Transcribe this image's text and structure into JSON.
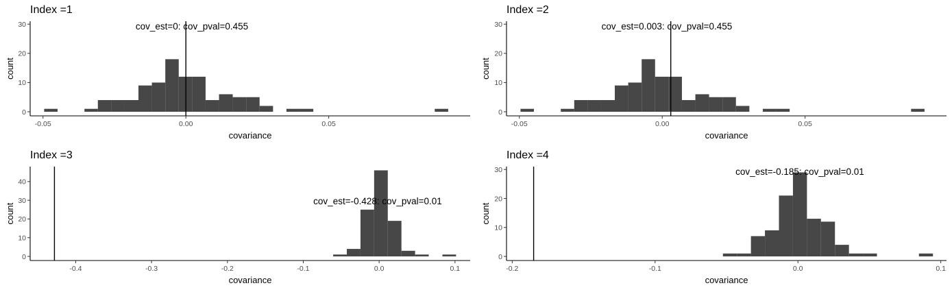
{
  "chart_data": [
    {
      "type": "histogram",
      "title": "Index =1",
      "xlabel": "covariance",
      "ylabel": "count",
      "annotation": "cov_est=0: cov_pval=0.455",
      "vline": 0,
      "xlim": [
        -0.0545,
        0.0995
      ],
      "ylim": [
        0,
        31
      ],
      "xticks": [
        -0.05,
        0.0,
        0.05
      ],
      "xtick_labels": [
        "-0.05",
        "0.00",
        "0.05"
      ],
      "yticks": [
        0,
        10,
        20,
        30
      ],
      "bins": [
        {
          "x0": -0.0496,
          "x1": -0.0449,
          "count": 1
        },
        {
          "x0": -0.0355,
          "x1": -0.0308,
          "count": 1
        },
        {
          "x0": -0.0308,
          "x1": -0.0261,
          "count": 4
        },
        {
          "x0": -0.0261,
          "x1": -0.0214,
          "count": 4
        },
        {
          "x0": -0.0214,
          "x1": -0.0166,
          "count": 4
        },
        {
          "x0": -0.0166,
          "x1": -0.0119,
          "count": 9
        },
        {
          "x0": -0.0119,
          "x1": -0.0072,
          "count": 10
        },
        {
          "x0": -0.0072,
          "x1": -0.0025,
          "count": 18
        },
        {
          "x0": -0.0025,
          "x1": 0.0022,
          "count": 12
        },
        {
          "x0": 0.0022,
          "x1": 0.0069,
          "count": 12
        },
        {
          "x0": 0.0069,
          "x1": 0.0116,
          "count": 4
        },
        {
          "x0": 0.0116,
          "x1": 0.0164,
          "count": 6
        },
        {
          "x0": 0.0164,
          "x1": 0.0211,
          "count": 5
        },
        {
          "x0": 0.0211,
          "x1": 0.0258,
          "count": 5
        },
        {
          "x0": 0.0258,
          "x1": 0.0305,
          "count": 2
        },
        {
          "x0": 0.0352,
          "x1": 0.0399,
          "count": 1
        },
        {
          "x0": 0.0399,
          "x1": 0.0446,
          "count": 1
        },
        {
          "x0": 0.0871,
          "x1": 0.0918,
          "count": 1
        }
      ]
    },
    {
      "type": "histogram",
      "title": "Index =2",
      "xlabel": "covariance",
      "ylabel": "count",
      "annotation": "cov_est=0.003: cov_pval=0.455",
      "vline": 0.003,
      "xlim": [
        -0.0545,
        0.0995
      ],
      "ylim": [
        0,
        31
      ],
      "xticks": [
        -0.05,
        0.0,
        0.05
      ],
      "xtick_labels": [
        "-0.05",
        "0.00",
        "0.05"
      ],
      "yticks": [
        0,
        10,
        20,
        30
      ],
      "bins": [
        {
          "x0": -0.0496,
          "x1": -0.0449,
          "count": 1
        },
        {
          "x0": -0.0355,
          "x1": -0.0308,
          "count": 1
        },
        {
          "x0": -0.0308,
          "x1": -0.0261,
          "count": 4
        },
        {
          "x0": -0.0261,
          "x1": -0.0214,
          "count": 4
        },
        {
          "x0": -0.0214,
          "x1": -0.0166,
          "count": 4
        },
        {
          "x0": -0.0166,
          "x1": -0.0119,
          "count": 9
        },
        {
          "x0": -0.0119,
          "x1": -0.0072,
          "count": 10
        },
        {
          "x0": -0.0072,
          "x1": -0.0025,
          "count": 18
        },
        {
          "x0": -0.0025,
          "x1": 0.0022,
          "count": 12
        },
        {
          "x0": 0.0022,
          "x1": 0.0069,
          "count": 12
        },
        {
          "x0": 0.0069,
          "x1": 0.0116,
          "count": 4
        },
        {
          "x0": 0.0116,
          "x1": 0.0164,
          "count": 6
        },
        {
          "x0": 0.0164,
          "x1": 0.0211,
          "count": 5
        },
        {
          "x0": 0.0211,
          "x1": 0.0258,
          "count": 5
        },
        {
          "x0": 0.0258,
          "x1": 0.0305,
          "count": 2
        },
        {
          "x0": 0.0352,
          "x1": 0.0399,
          "count": 1
        },
        {
          "x0": 0.0399,
          "x1": 0.0446,
          "count": 1
        },
        {
          "x0": 0.0871,
          "x1": 0.0918,
          "count": 1
        }
      ]
    },
    {
      "type": "histogram",
      "title": "Index =3",
      "xlabel": "covariance",
      "ylabel": "count",
      "annotation": "cov_est=-0.428: cov_pval=0.01",
      "vline": -0.428,
      "xlim": [
        -0.46,
        0.12
      ],
      "ylim": [
        0,
        48
      ],
      "xticks": [
        -0.4,
        -0.3,
        -0.2,
        -0.1,
        0.0,
        0.1
      ],
      "xtick_labels": [
        "-0.4",
        "-0.3",
        "-0.2",
        "-0.1",
        "0.0",
        "0.1"
      ],
      "yticks": [
        0,
        10,
        20,
        30,
        40
      ],
      "bins": [
        {
          "x0": -0.0606,
          "x1": -0.0426,
          "count": 1
        },
        {
          "x0": -0.0426,
          "x1": -0.0246,
          "count": 4
        },
        {
          "x0": -0.0246,
          "x1": -0.0066,
          "count": 25
        },
        {
          "x0": -0.0066,
          "x1": 0.0114,
          "count": 46
        },
        {
          "x0": 0.0114,
          "x1": 0.0294,
          "count": 19
        },
        {
          "x0": 0.0294,
          "x1": 0.0474,
          "count": 3
        },
        {
          "x0": 0.0474,
          "x1": 0.0654,
          "count": 1
        },
        {
          "x0": 0.0834,
          "x1": 0.1014,
          "count": 1
        }
      ]
    },
    {
      "type": "histogram",
      "title": "Index =4",
      "xlabel": "covariance",
      "ylabel": "count",
      "annotation": "cov_est=-0.185: cov_pval=0.01",
      "vline": -0.185,
      "xlim": [
        -0.204,
        0.104
      ],
      "ylim": [
        0,
        31
      ],
      "xticks": [
        -0.2,
        -0.1,
        0.0,
        0.1
      ],
      "xtick_labels": [
        "-0.2",
        "-0.1",
        "0.0",
        "0.1"
      ],
      "yticks": [
        0,
        10,
        20,
        30
      ],
      "bins": [
        {
          "x0": -0.0525,
          "x1": -0.0427,
          "count": 1
        },
        {
          "x0": -0.0427,
          "x1": -0.0329,
          "count": 1
        },
        {
          "x0": -0.0329,
          "x1": -0.0231,
          "count": 7
        },
        {
          "x0": -0.0231,
          "x1": -0.0133,
          "count": 9
        },
        {
          "x0": -0.0133,
          "x1": -0.0035,
          "count": 21
        },
        {
          "x0": -0.0035,
          "x1": 0.0063,
          "count": 29
        },
        {
          "x0": 0.0063,
          "x1": 0.0161,
          "count": 13
        },
        {
          "x0": 0.0161,
          "x1": 0.0259,
          "count": 12
        },
        {
          "x0": 0.0259,
          "x1": 0.0357,
          "count": 4
        },
        {
          "x0": 0.0357,
          "x1": 0.0455,
          "count": 1
        },
        {
          "x0": 0.0455,
          "x1": 0.0553,
          "count": 1
        },
        {
          "x0": 0.0847,
          "x1": 0.0945,
          "count": 1
        }
      ]
    }
  ],
  "style": {
    "bar_color": "#474747",
    "axis_color": "#000000",
    "tick_label_color": "#4d4d4d"
  }
}
